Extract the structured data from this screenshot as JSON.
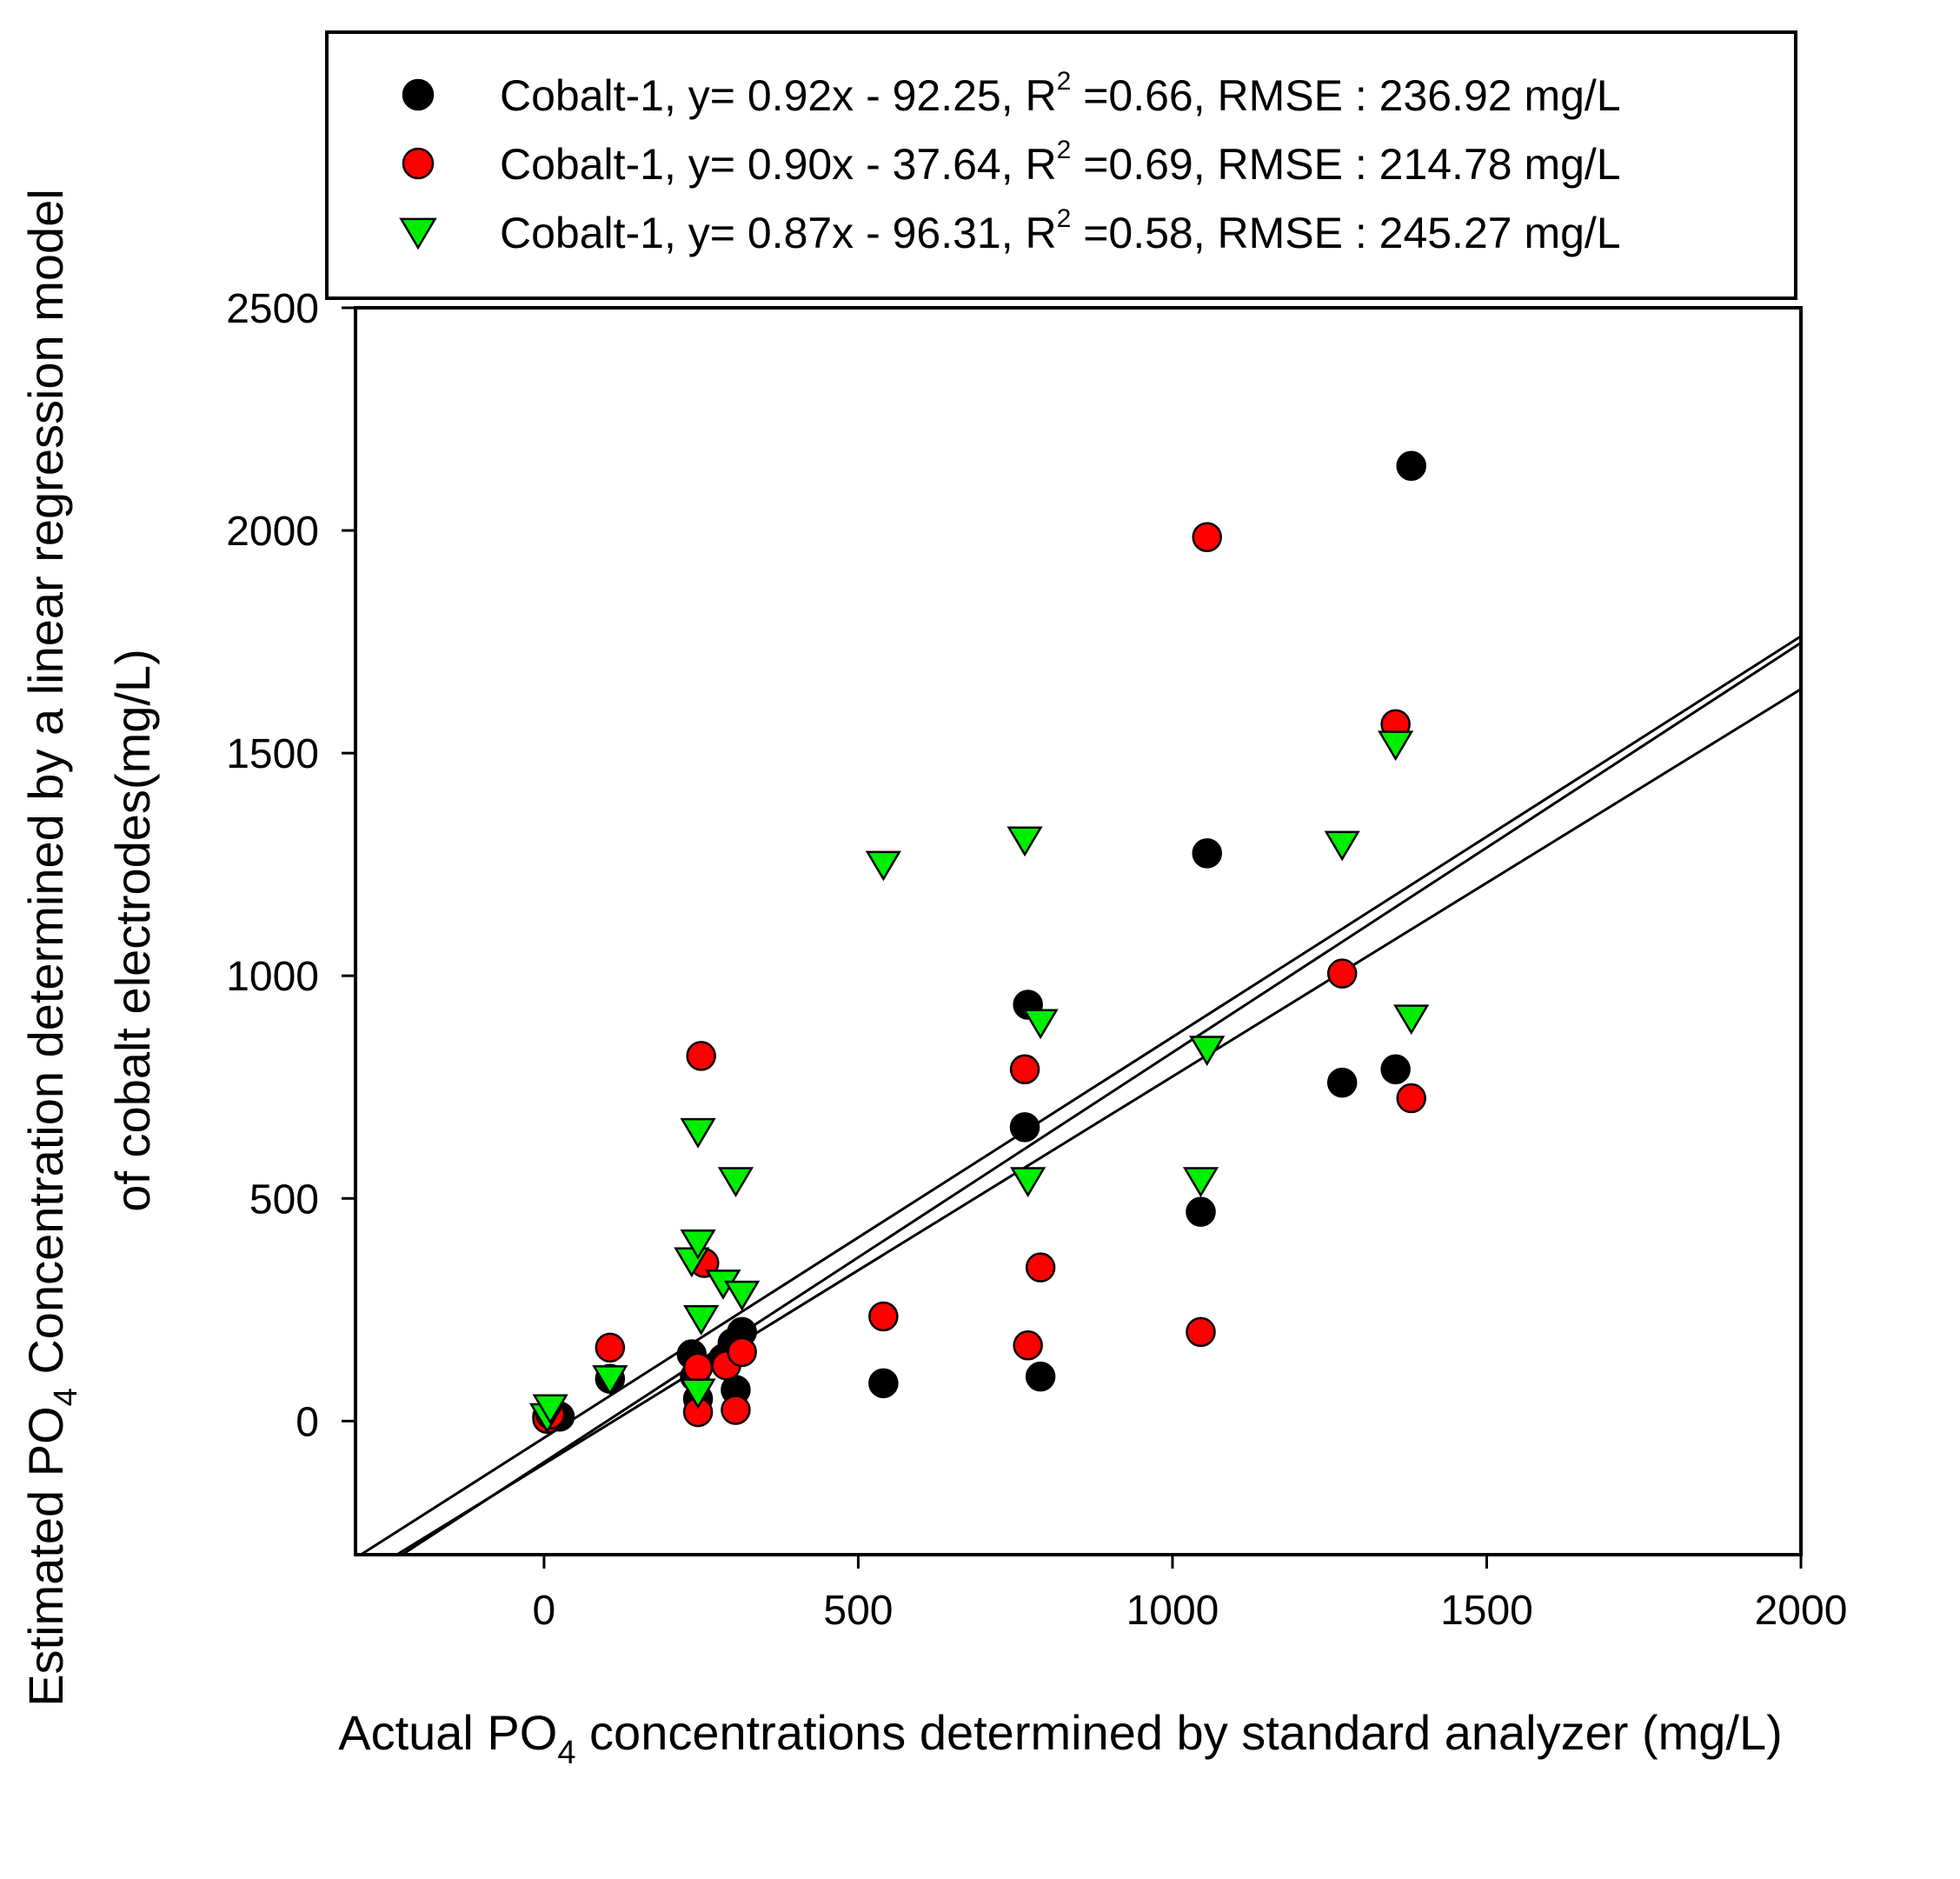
{
  "chart_data": {
    "type": "scatter",
    "title": "",
    "xlabel": {
      "before": "Actual PO",
      "sub": "4",
      "after": " concentrations determined by standard analyzer (mg/L)"
    },
    "ylabel": {
      "line1": {
        "before": "Estimated PO",
        "sub": "4",
        "after": " Concentration determined by a linear regression model"
      },
      "line2": "of cobalt electrodes(mg/L)"
    },
    "xlim": [
      -300,
      2000
    ],
    "ylim": [
      -300,
      2500
    ],
    "xticks": [
      0,
      500,
      1000,
      1500,
      2000
    ],
    "yticks": [
      0,
      500,
      1000,
      1500,
      2000,
      2500
    ],
    "legend_position": "top",
    "series": [
      {
        "name": "Cobalt-1",
        "marker": "circle",
        "color": "#000000",
        "legend": {
          "prefix": "Cobalt-1, y= 0.92x - 92.25, R",
          "sup": "2",
          "suffix": " =0.66, RMSE : 236.92 mg/L"
        },
        "points": [
          [
            5,
            10
          ],
          [
            15,
            20
          ],
          [
            25,
            10
          ],
          [
            105,
            95
          ],
          [
            235,
            150
          ],
          [
            240,
            100
          ],
          [
            245,
            50
          ],
          [
            285,
            140
          ],
          [
            300,
            175
          ],
          [
            305,
            70
          ],
          [
            315,
            200
          ],
          [
            540,
            85
          ],
          [
            765,
            660
          ],
          [
            770,
            935
          ],
          [
            790,
            100
          ],
          [
            1045,
            470
          ],
          [
            1055,
            1275
          ],
          [
            1270,
            760
          ],
          [
            1355,
            790
          ],
          [
            1380,
            2145
          ]
        ]
      },
      {
        "name": "Cobalt-1",
        "marker": "circle",
        "color": "#ff0000",
        "legend": {
          "prefix": "Cobalt-1, y= 0.90x - 37.64, R",
          "sup": "2",
          "suffix": " =0.69, RMSE : 214.78 mg/L"
        },
        "points": [
          [
            5,
            5
          ],
          [
            10,
            15
          ],
          [
            105,
            165
          ],
          [
            245,
            20
          ],
          [
            245,
            120
          ],
          [
            250,
            820
          ],
          [
            255,
            355
          ],
          [
            290,
            125
          ],
          [
            305,
            25
          ],
          [
            315,
            155
          ],
          [
            540,
            235
          ],
          [
            765,
            790
          ],
          [
            770,
            170
          ],
          [
            790,
            345
          ],
          [
            1045,
            200
          ],
          [
            1055,
            1985
          ],
          [
            1270,
            1005
          ],
          [
            1355,
            1565
          ],
          [
            1380,
            725
          ]
        ]
      },
      {
        "name": "Cobalt-1",
        "marker": "triangle-down",
        "color": "#00ee00",
        "legend": {
          "prefix": "Cobalt-1, y= 0.87x - 96.31, R",
          "sup": "2",
          "suffix": " =0.58, RMSE : 245.27 mg/L"
        },
        "points": [
          [
            5,
            10
          ],
          [
            10,
            30
          ],
          [
            105,
            95
          ],
          [
            235,
            360
          ],
          [
            245,
            400
          ],
          [
            245,
            650
          ],
          [
            245,
            65
          ],
          [
            250,
            230
          ],
          [
            285,
            310
          ],
          [
            305,
            540
          ],
          [
            315,
            285
          ],
          [
            540,
            1250
          ],
          [
            765,
            1305
          ],
          [
            770,
            540
          ],
          [
            790,
            895
          ],
          [
            1045,
            540
          ],
          [
            1055,
            835
          ],
          [
            1270,
            1295
          ],
          [
            1355,
            1520
          ],
          [
            1380,
            905
          ]
        ]
      }
    ],
    "regression_lines": [
      {
        "slope": 0.92,
        "intercept": -92.25
      },
      {
        "slope": 0.9,
        "intercept": -37.64
      },
      {
        "slope": 0.87,
        "intercept": -96.31
      }
    ]
  }
}
